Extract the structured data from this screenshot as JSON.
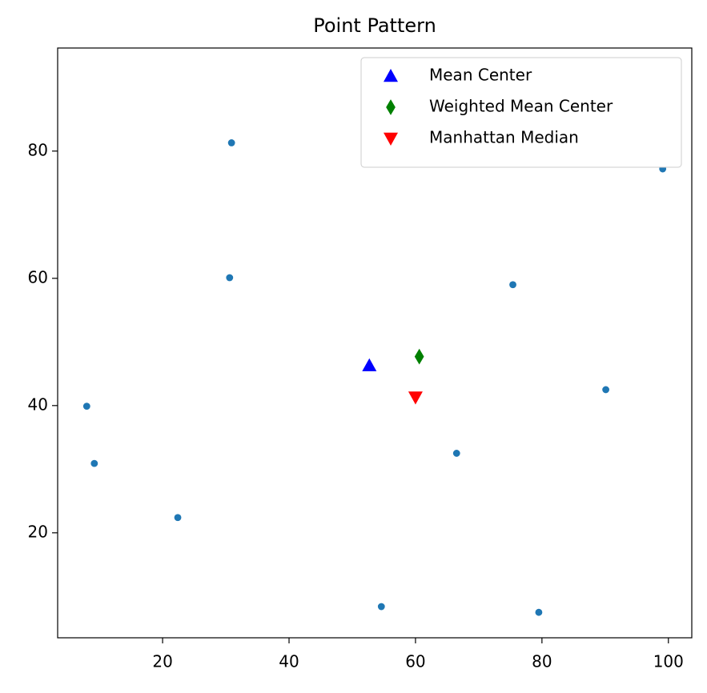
{
  "chart_data": {
    "type": "scatter",
    "title": "Point Pattern",
    "series": [
      {
        "color": "#1f77b4",
        "marker": "o",
        "x": [
          30.9,
          99.1,
          30.6,
          75.4,
          8.0,
          90.1,
          9.2,
          66.5,
          22.4,
          54.6,
          79.5
        ],
        "values": [
          81.3,
          77.2,
          60.1,
          59.0,
          39.9,
          42.5,
          30.9,
          32.5,
          22.4,
          8.4,
          7.5
        ]
      },
      {
        "name": "Mean Center",
        "color": "#0000ff",
        "marker": "^",
        "x": [
          52.7
        ],
        "values": [
          46.3
        ]
      },
      {
        "name": "Weighted Mean Center",
        "color": "#008000",
        "marker": "d",
        "x": [
          60.6
        ],
        "values": [
          47.7
        ]
      },
      {
        "name": "Manhattan Median",
        "color": "#ff0000",
        "marker": "v",
        "x": [
          60.0
        ],
        "values": [
          41.3
        ]
      }
    ],
    "xlim": [
      3.4,
      103.7
    ],
    "ylim": [
      3.5,
      96.2
    ],
    "xticks": [
      20,
      40,
      60,
      80,
      100
    ],
    "yticks": [
      20,
      40,
      60,
      80
    ],
    "legend": "upper right"
  }
}
